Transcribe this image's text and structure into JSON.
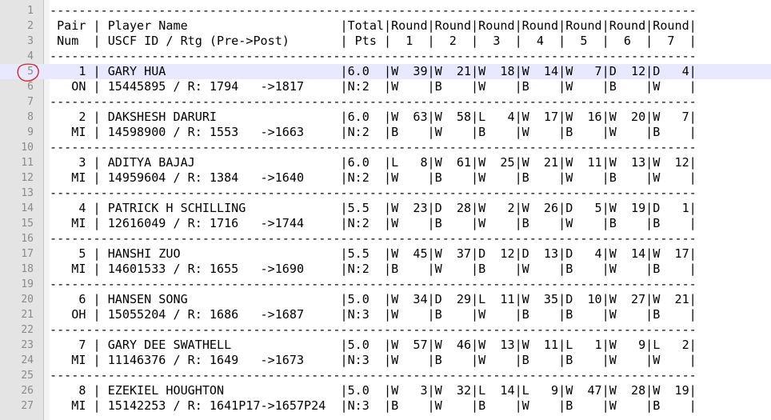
{
  "editor": {
    "highlighted_line": 5,
    "lines": [
      {
        "num": "1",
        "text": "-----------------------------------------------------------------------------------------"
      },
      {
        "num": "2",
        "text": " Pair | Player Name                     |Total|Round|Round|Round|Round|Round|Round|Round| "
      },
      {
        "num": "3",
        "text": " Num  | USCF ID / Rtg (Pre->Post)       | Pts |  1  |  2  |  3  |  4  |  5  |  6  |  7  | "
      },
      {
        "num": "4",
        "text": "-----------------------------------------------------------------------------------------"
      },
      {
        "num": "5",
        "text": "    1 | GARY HUA                        |6.0  |W  39|W  21|W  18|W  14|W   7|D  12|D   4|"
      },
      {
        "num": "6",
        "text": "   ON | 15445895 / R: 1794   ->1817     |N:2  |W    |B    |W    |B    |W    |B    |W    |"
      },
      {
        "num": "7",
        "text": "-----------------------------------------------------------------------------------------"
      },
      {
        "num": "8",
        "text": "    2 | DAKSHESH DARURI                 |6.0  |W  63|W  58|L   4|W  17|W  16|W  20|W   7|"
      },
      {
        "num": "9",
        "text": "   MI | 14598900 / R: 1553   ->1663     |N:2  |B    |W    |B    |W    |B    |W    |B    |"
      },
      {
        "num": "10",
        "text": "-----------------------------------------------------------------------------------------"
      },
      {
        "num": "11",
        "text": "    3 | ADITYA BAJAJ                    |6.0  |L   8|W  61|W  25|W  21|W  11|W  13|W  12|"
      },
      {
        "num": "12",
        "text": "   MI | 14959604 / R: 1384   ->1640     |N:2  |W    |B    |W    |B    |W    |B    |W    |"
      },
      {
        "num": "13",
        "text": "-----------------------------------------------------------------------------------------"
      },
      {
        "num": "14",
        "text": "    4 | PATRICK H SCHILLING             |5.5  |W  23|D  28|W   2|W  26|D   5|W  19|D   1|"
      },
      {
        "num": "15",
        "text": "   MI | 12616049 / R: 1716   ->1744     |N:2  |W    |B    |W    |B    |W    |B    |B    |"
      },
      {
        "num": "16",
        "text": "-----------------------------------------------------------------------------------------"
      },
      {
        "num": "17",
        "text": "    5 | HANSHI ZUO                      |5.5  |W  45|W  37|D  12|D  13|D   4|W  14|W  17|"
      },
      {
        "num": "18",
        "text": "   MI | 14601533 / R: 1655   ->1690     |N:2  |B    |W    |B    |W    |B    |W    |B    |"
      },
      {
        "num": "19",
        "text": "-----------------------------------------------------------------------------------------"
      },
      {
        "num": "20",
        "text": "    6 | HANSEN SONG                     |5.0  |W  34|D  29|L  11|W  35|D  10|W  27|W  21|"
      },
      {
        "num": "21",
        "text": "   OH | 15055204 / R: 1686   ->1687     |N:3  |W    |B    |W    |B    |B    |W    |B    |"
      },
      {
        "num": "22",
        "text": "-----------------------------------------------------------------------------------------"
      },
      {
        "num": "23",
        "text": "    7 | GARY DEE SWATHELL               |5.0  |W  57|W  46|W  13|W  11|L   1|W   9|L   2|"
      },
      {
        "num": "24",
        "text": "   MI | 11146376 / R: 1649   ->1673     |N:3  |W    |B    |W    |B    |B    |W    |W    |"
      },
      {
        "num": "25",
        "text": "-----------------------------------------------------------------------------------------"
      },
      {
        "num": "26",
        "text": "    8 | EZEKIEL HOUGHTON                |5.0  |W   3|W  32|L  14|L   9|W  47|W  28|W  19|"
      },
      {
        "num": "27",
        "text": "   MI | 15142253 / R: 1641P17->1657P24  |N:3  |B    |W    |B    |W    |B    |W    |B    |"
      }
    ]
  },
  "colors": {
    "gutter": "#e4e4e4",
    "line_number": "#8a8a8a",
    "highlight": "#e8e8ff",
    "annotation": "#d42020"
  }
}
